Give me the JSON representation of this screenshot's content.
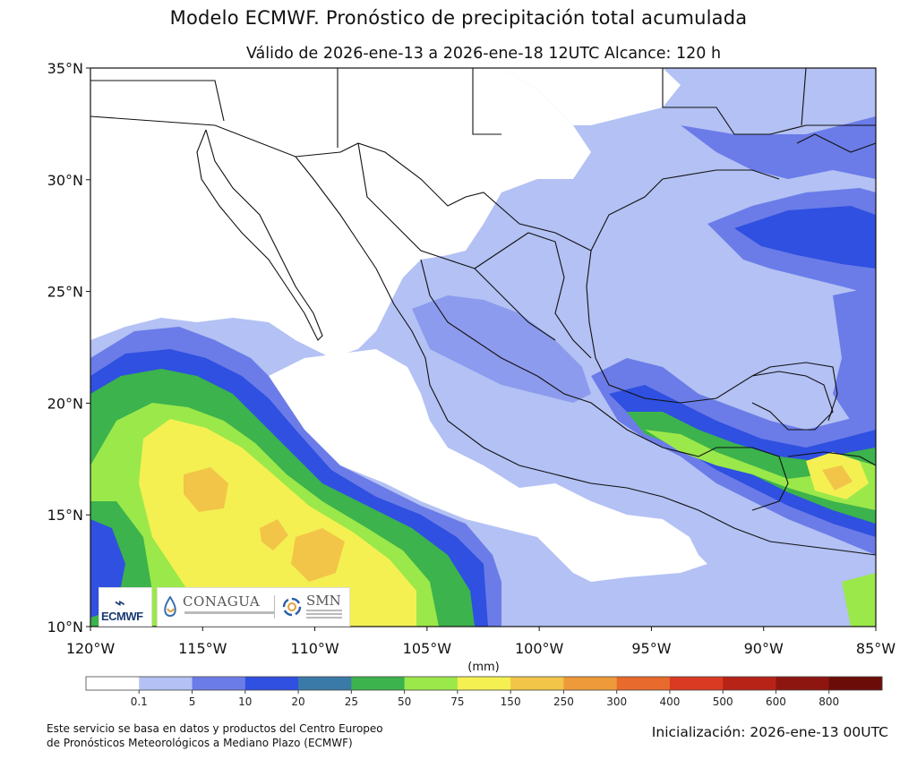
{
  "title": "Modelo ECMWF. Pronóstico de precipitación total acumulada",
  "subtitle": "Válido de 2026-ene-13 a 2026-ene-18 12UTC   Alcance: 120 h",
  "units": "(mm)",
  "lat_labels": [
    "35°N",
    "30°N",
    "25°N",
    "20°N",
    "15°N",
    "10°N"
  ],
  "lat_values": [
    35,
    30,
    25,
    20,
    15,
    10
  ],
  "lon_labels": [
    "120°W",
    "115°W",
    "110°W",
    "105°W",
    "100°W",
    "95°W",
    "90°W",
    "85°W"
  ],
  "lon_values": [
    -120,
    -115,
    -110,
    -105,
    -100,
    -95,
    -90,
    -85
  ],
  "colorbar": {
    "ticks": [
      "0.1",
      "5",
      "10",
      "20",
      "25",
      "50",
      "75",
      "150",
      "250",
      "300",
      "400",
      "500",
      "600",
      "800"
    ],
    "colors": [
      "#ffffff",
      "#b3c1f4",
      "#6b7ce8",
      "#2f50e0",
      "#3a7aa8",
      "#3cb34c",
      "#9be84a",
      "#f4f052",
      "#f2c548",
      "#ee9a3a",
      "#e86a2c",
      "#db3a22",
      "#b82318",
      "#8e1610",
      "#6b0c08"
    ]
  },
  "logos": {
    "ecmwf": "ECMWF",
    "conagua": "CONAGUA",
    "smn": "SMN"
  },
  "footer": {
    "source_line1": "Este servicio se basa en datos y productos del Centro Europeo",
    "source_line2": "de Pronósticos Meteorológicos a Mediano Plazo (ECMWF)",
    "init": "Inicialización: 2026-ene-13 00UTC"
  }
}
